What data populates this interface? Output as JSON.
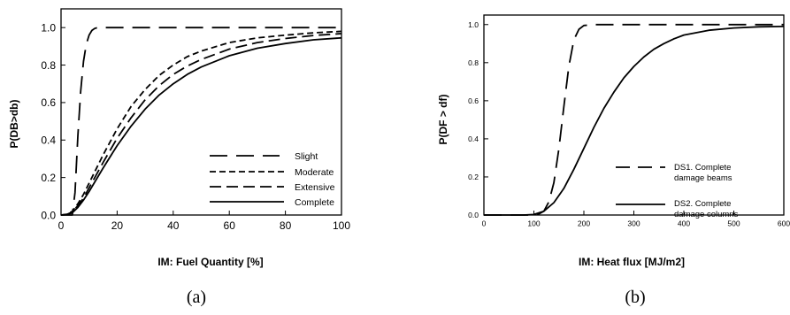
{
  "chart_data": [
    {
      "type": "line",
      "panel_label": "(a)",
      "xlabel": "IM: Fuel Quantity [%]",
      "ylabel": "P(DB>db)",
      "xlim": [
        0,
        100
      ],
      "ylim": [
        0,
        1.1
      ],
      "xticks": [
        "0",
        "20",
        "40",
        "60",
        "80",
        "100"
      ],
      "yticks": [
        "0.0",
        "0.2",
        "0.4",
        "0.6",
        "0.8",
        "1.0"
      ],
      "xtick_values": [
        0,
        20,
        40,
        60,
        80,
        100
      ],
      "ytick_values": [
        0,
        0.2,
        0.4,
        0.6,
        0.8,
        1.0
      ],
      "grid": false,
      "legend_position": "center-right",
      "series": [
        {
          "name": "Slight",
          "style": "long-dash",
          "x": [
            0,
            4,
            5,
            6,
            7,
            8,
            9,
            10,
            11,
            12,
            13,
            14,
            20,
            40,
            60,
            80,
            100
          ],
          "y": [
            0,
            0,
            0.12,
            0.42,
            0.66,
            0.82,
            0.91,
            0.96,
            0.985,
            0.995,
            1.0,
            1.0,
            1.0,
            1.0,
            1.0,
            1.0,
            1.0
          ]
        },
        {
          "name": "Moderate",
          "style": "short-dash",
          "x": [
            0,
            2,
            4,
            6,
            8,
            10,
            15,
            20,
            25,
            30,
            35,
            40,
            45,
            50,
            60,
            70,
            80,
            90,
            100
          ],
          "y": [
            0,
            0.004,
            0.02,
            0.06,
            0.11,
            0.17,
            0.32,
            0.46,
            0.58,
            0.67,
            0.745,
            0.8,
            0.845,
            0.875,
            0.92,
            0.945,
            0.96,
            0.972,
            0.98
          ]
        },
        {
          "name": "Extensive",
          "style": "medium-dash",
          "x": [
            0,
            2,
            4,
            6,
            8,
            10,
            15,
            20,
            25,
            30,
            35,
            40,
            45,
            50,
            60,
            70,
            80,
            90,
            100
          ],
          "y": [
            0,
            0.003,
            0.016,
            0.05,
            0.09,
            0.145,
            0.28,
            0.41,
            0.52,
            0.615,
            0.69,
            0.75,
            0.795,
            0.83,
            0.885,
            0.92,
            0.942,
            0.958,
            0.968
          ]
        },
        {
          "name": "Complete",
          "style": "solid",
          "x": [
            0,
            2,
            4,
            6,
            8,
            10,
            15,
            20,
            25,
            30,
            35,
            40,
            45,
            50,
            60,
            70,
            80,
            90,
            100
          ],
          "y": [
            0,
            0.002,
            0.012,
            0.04,
            0.08,
            0.125,
            0.25,
            0.37,
            0.475,
            0.565,
            0.64,
            0.7,
            0.75,
            0.79,
            0.85,
            0.89,
            0.915,
            0.935,
            0.945
          ]
        }
      ]
    },
    {
      "type": "line",
      "panel_label": "(b)",
      "xlabel": "IM: Heat flux [MJ/m2]",
      "ylabel": "P(DF > df)",
      "xlim": [
        0,
        600
      ],
      "ylim": [
        0,
        1.05
      ],
      "xticks": [
        "0",
        "100",
        "200",
        "300",
        "400",
        "500",
        "600"
      ],
      "yticks": [
        "0.0",
        "0.2",
        "0.4",
        "0.6",
        "0.8",
        "1.0"
      ],
      "xtick_values": [
        0,
        100,
        200,
        300,
        400,
        500,
        600
      ],
      "ytick_values": [
        0,
        0.2,
        0.4,
        0.6,
        0.8,
        1.0
      ],
      "grid": false,
      "legend_position": "center-right",
      "series": [
        {
          "name": "DS1. Complete damage beams",
          "style": "long-dash",
          "x": [
            0,
            100,
            110,
            120,
            130,
            140,
            150,
            160,
            170,
            180,
            190,
            200,
            220,
            300,
            400,
            500,
            600
          ],
          "y": [
            0,
            0,
            0.005,
            0.02,
            0.07,
            0.17,
            0.35,
            0.57,
            0.78,
            0.92,
            0.975,
            0.995,
            1.0,
            1.0,
            1.0,
            1.0,
            1.0
          ]
        },
        {
          "name": "DS2. Complete damage columns",
          "style": "solid",
          "x": [
            0,
            80,
            100,
            120,
            140,
            160,
            180,
            200,
            220,
            240,
            260,
            280,
            300,
            320,
            340,
            360,
            380,
            400,
            450,
            500,
            550,
            600
          ],
          "y": [
            0,
            0,
            0.003,
            0.02,
            0.065,
            0.14,
            0.24,
            0.35,
            0.46,
            0.56,
            0.645,
            0.72,
            0.78,
            0.83,
            0.87,
            0.9,
            0.925,
            0.945,
            0.97,
            0.982,
            0.988,
            0.99
          ]
        }
      ]
    }
  ]
}
